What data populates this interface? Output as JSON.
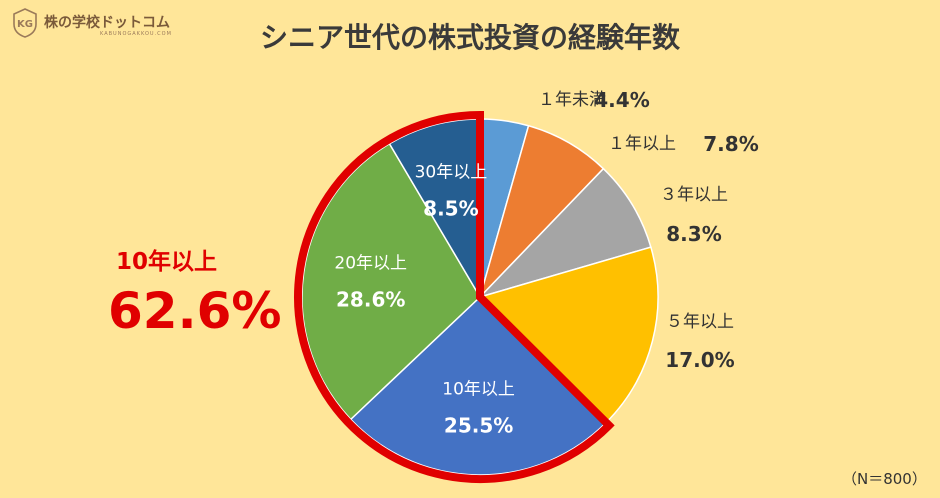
{
  "logo": {
    "badge": "KG",
    "name": "株の学校ドットコム",
    "sub": "KABUNOGAKKOU.COM"
  },
  "big_label": "10年以上",
  "big_value": "62.6%",
  "note": "（N＝800）",
  "colors": {
    "background": "#ffe699",
    "highlight": "#e00000"
  },
  "chart_data": {
    "type": "pie",
    "title": "シニア世代の株式投資の経験年数",
    "start_angle_deg": 0,
    "direction": "clockwise",
    "slices": [
      {
        "label": "１年未満",
        "value": 4.4,
        "value_label": "4.4%",
        "color": "#5b9bd5",
        "label_position": "outside"
      },
      {
        "label": "１年以上",
        "value": 7.8,
        "value_label": "7.8%",
        "color": "#ed7d31",
        "label_position": "outside"
      },
      {
        "label": "３年以上",
        "value": 8.3,
        "value_label": "8.3%",
        "color": "#a5a5a5",
        "label_position": "outside"
      },
      {
        "label": "５年以上",
        "value": 17.0,
        "value_label": "17.0%",
        "color": "#ffc000",
        "label_position": "outside"
      },
      {
        "label": "10年以上",
        "value": 25.5,
        "value_label": "25.5%",
        "color": "#4472c4",
        "label_position": "inside"
      },
      {
        "label": "20年以上",
        "value": 28.6,
        "value_label": "28.6%",
        "color": "#70ad47",
        "label_position": "inside"
      },
      {
        "label": "30年以上",
        "value": 8.5,
        "value_label": "8.5%",
        "color": "#255e91",
        "label_position": "inside"
      }
    ],
    "highlighted_slices": [
      "10年以上",
      "20年以上",
      "30年以上"
    ]
  }
}
